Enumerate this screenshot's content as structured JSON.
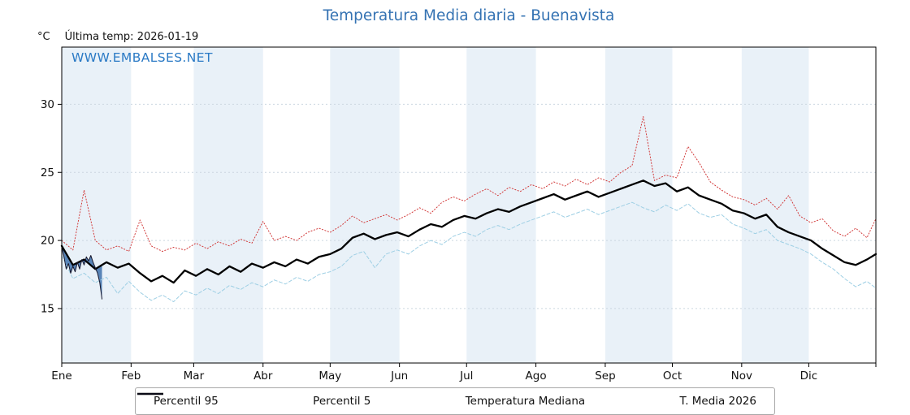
{
  "header": {
    "title": "Temperatura Media diaria - Buenavista",
    "unit_label": "°C",
    "last_temp_label": "Última temp: 2026-01-19",
    "watermark": "WWW.EMBALSES.NET"
  },
  "chart_data": {
    "type": "line",
    "title": "Temperatura Media diaria - Buenavista",
    "xlabel": "",
    "ylabel": "°C",
    "x_axis": {
      "unit": "day_of_year",
      "month_labels": [
        "Ene",
        "Feb",
        "Mar",
        "Abr",
        "May",
        "Jun",
        "Jul",
        "Ago",
        "Sep",
        "Oct",
        "Nov",
        "Dic"
      ],
      "month_start_days": [
        1,
        32,
        60,
        91,
        121,
        152,
        182,
        213,
        244,
        274,
        305,
        335
      ],
      "days_in_year": 365
    },
    "y_axis": {
      "unit": "°C",
      "ticks": [
        15,
        20,
        25,
        30
      ],
      "range": [
        11.0,
        34.2
      ]
    },
    "grid": true,
    "band_color": "#e9f1f8",
    "grid_color": "#ccd6e0",
    "legend_position": "bottom",
    "annotations": {
      "last_temp": "Última temp: 2026-01-19",
      "watermark": "WWW.EMBALSES.NET"
    },
    "series": [
      {
        "name": "Percentil 95",
        "color": "#d23a3a",
        "dash": "1.2 2.4",
        "width": 1,
        "legend_width": 1.2,
        "days": [
          1,
          6,
          11,
          16,
          21,
          26,
          31,
          36,
          41,
          46,
          51,
          56,
          61,
          66,
          71,
          76,
          81,
          86,
          91,
          96,
          101,
          106,
          111,
          116,
          121,
          126,
          131,
          136,
          141,
          146,
          151,
          156,
          161,
          166,
          171,
          176,
          181,
          186,
          191,
          196,
          201,
          206,
          211,
          216,
          221,
          226,
          231,
          236,
          241,
          246,
          251,
          256,
          261,
          266,
          271,
          276,
          281,
          286,
          291,
          296,
          301,
          306,
          311,
          316,
          321,
          326,
          331,
          336,
          341,
          346,
          351,
          356,
          361,
          365
        ],
        "values": [
          20.0,
          19.3,
          23.7,
          20.0,
          19.3,
          19.6,
          19.2,
          21.5,
          19.6,
          19.2,
          19.5,
          19.3,
          19.8,
          19.4,
          19.9,
          19.6,
          20.1,
          19.8,
          21.4,
          20.0,
          20.3,
          20.0,
          20.6,
          20.9,
          20.6,
          21.1,
          21.8,
          21.3,
          21.6,
          21.9,
          21.5,
          21.9,
          22.4,
          22.0,
          22.8,
          23.2,
          22.9,
          23.4,
          23.8,
          23.3,
          23.9,
          23.6,
          24.1,
          23.8,
          24.3,
          24.0,
          24.5,
          24.1,
          24.6,
          24.3,
          25.0,
          25.5,
          29.1,
          24.4,
          24.8,
          24.6,
          26.9,
          25.7,
          24.3,
          23.7,
          23.2,
          23.0,
          22.6,
          23.1,
          22.3,
          23.3,
          21.8,
          21.3,
          21.6,
          20.7,
          20.3,
          20.9,
          20.2,
          21.6
        ]
      },
      {
        "name": "Percentil 5",
        "color": "#9ecfe4",
        "dash": "4 2.6",
        "width": 1,
        "legend_width": 1.2,
        "days": [
          1,
          6,
          11,
          16,
          21,
          26,
          31,
          36,
          41,
          46,
          51,
          56,
          61,
          66,
          71,
          76,
          81,
          86,
          91,
          96,
          101,
          106,
          111,
          116,
          121,
          126,
          131,
          136,
          141,
          146,
          151,
          156,
          161,
          166,
          171,
          176,
          181,
          186,
          191,
          196,
          201,
          206,
          211,
          216,
          221,
          226,
          231,
          236,
          241,
          246,
          251,
          256,
          261,
          266,
          271,
          276,
          281,
          286,
          291,
          296,
          301,
          306,
          311,
          316,
          321,
          326,
          331,
          336,
          341,
          346,
          351,
          356,
          361,
          365
        ],
        "values": [
          18.9,
          17.2,
          17.6,
          16.9,
          17.3,
          16.1,
          17.0,
          16.2,
          15.6,
          16.0,
          15.5,
          16.3,
          16.0,
          16.5,
          16.1,
          16.7,
          16.4,
          16.9,
          16.6,
          17.1,
          16.8,
          17.3,
          17.0,
          17.5,
          17.7,
          18.1,
          18.9,
          19.2,
          18.0,
          19.0,
          19.3,
          19.0,
          19.6,
          20.0,
          19.7,
          20.3,
          20.6,
          20.3,
          20.8,
          21.1,
          20.8,
          21.2,
          21.5,
          21.8,
          22.1,
          21.7,
          22.0,
          22.3,
          21.9,
          22.2,
          22.5,
          22.8,
          22.4,
          22.1,
          22.6,
          22.2,
          22.7,
          22.0,
          21.7,
          21.9,
          21.2,
          20.9,
          20.5,
          20.8,
          20.0,
          19.7,
          19.4,
          19.0,
          18.4,
          17.9,
          17.2,
          16.6,
          17.0,
          16.5
        ]
      },
      {
        "name": "Temperatura Mediana",
        "color": "#000000",
        "dash": "",
        "width": 2.3,
        "legend_width": 2.6,
        "days": [
          1,
          6,
          11,
          16,
          21,
          26,
          31,
          36,
          41,
          46,
          51,
          56,
          61,
          66,
          71,
          76,
          81,
          86,
          91,
          96,
          101,
          106,
          111,
          116,
          121,
          126,
          131,
          136,
          141,
          146,
          151,
          156,
          161,
          166,
          171,
          176,
          181,
          186,
          191,
          196,
          201,
          206,
          211,
          216,
          221,
          226,
          231,
          236,
          241,
          246,
          251,
          256,
          261,
          266,
          271,
          276,
          281,
          286,
          291,
          296,
          301,
          306,
          311,
          316,
          321,
          326,
          331,
          336,
          341,
          346,
          351,
          356,
          361,
          365
        ],
        "values": [
          19.6,
          18.2,
          18.6,
          17.9,
          18.4,
          18.0,
          18.3,
          17.6,
          17.0,
          17.4,
          16.9,
          17.8,
          17.4,
          17.9,
          17.5,
          18.1,
          17.7,
          18.3,
          18.0,
          18.4,
          18.1,
          18.6,
          18.3,
          18.8,
          19.0,
          19.4,
          20.2,
          20.5,
          20.1,
          20.4,
          20.6,
          20.3,
          20.8,
          21.2,
          21.0,
          21.5,
          21.8,
          21.6,
          22.0,
          22.3,
          22.1,
          22.5,
          22.8,
          23.1,
          23.4,
          23.0,
          23.3,
          23.6,
          23.2,
          23.5,
          23.8,
          24.1,
          24.4,
          24.0,
          24.2,
          23.6,
          23.9,
          23.3,
          23.0,
          22.7,
          22.2,
          22.0,
          21.6,
          21.9,
          21.0,
          20.6,
          20.3,
          20.0,
          19.4,
          18.9,
          18.4,
          18.2,
          18.6,
          19.0
        ]
      },
      {
        "name": "T. Media 2026",
        "color": "#15152b",
        "dash": "",
        "width": 1,
        "legend_width": 1,
        "days": [
          1,
          2,
          3,
          4,
          5,
          6,
          7,
          8,
          9,
          10,
          11,
          12,
          13,
          14,
          15,
          16,
          17,
          18,
          19
        ],
        "values": [
          19.5,
          18.8,
          17.9,
          18.3,
          17.6,
          18.1,
          17.7,
          18.4,
          17.9,
          18.6,
          18.2,
          18.8,
          18.5,
          18.9,
          18.4,
          18.0,
          17.6,
          16.9,
          15.7
        ],
        "fill": {
          "to_series_index": 2,
          "color": "#3f72ad",
          "opacity": 0.85
        }
      }
    ]
  }
}
